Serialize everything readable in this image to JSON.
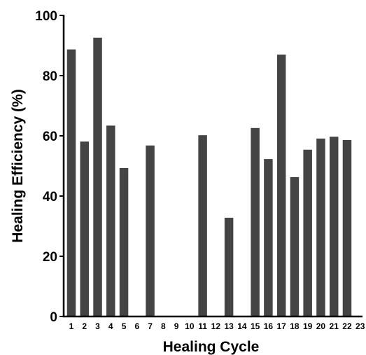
{
  "chart_data": {
    "type": "bar",
    "title": "",
    "xlabel": "Healing Cycle",
    "ylabel": "Healing Efficiency (%)",
    "categories": [
      "1",
      "2",
      "3",
      "4",
      "5",
      "6",
      "7",
      "8",
      "9",
      "10",
      "11",
      "12",
      "13",
      "14",
      "15",
      "16",
      "17",
      "18",
      "19",
      "20",
      "21",
      "22",
      "23"
    ],
    "values": [
      88.7,
      58.1,
      92.6,
      63.4,
      49.3,
      0,
      56.8,
      0,
      0,
      0,
      60.2,
      0,
      32.8,
      0,
      62.6,
      52.3,
      87.0,
      46.3,
      55.4,
      59.1,
      59.7,
      58.6,
      0
    ],
    "ylim": [
      0,
      100
    ],
    "yticks": [
      0,
      20,
      40,
      60,
      80,
      100
    ],
    "grid": false,
    "bar_color": "#444444",
    "axis_color": "#000000"
  }
}
